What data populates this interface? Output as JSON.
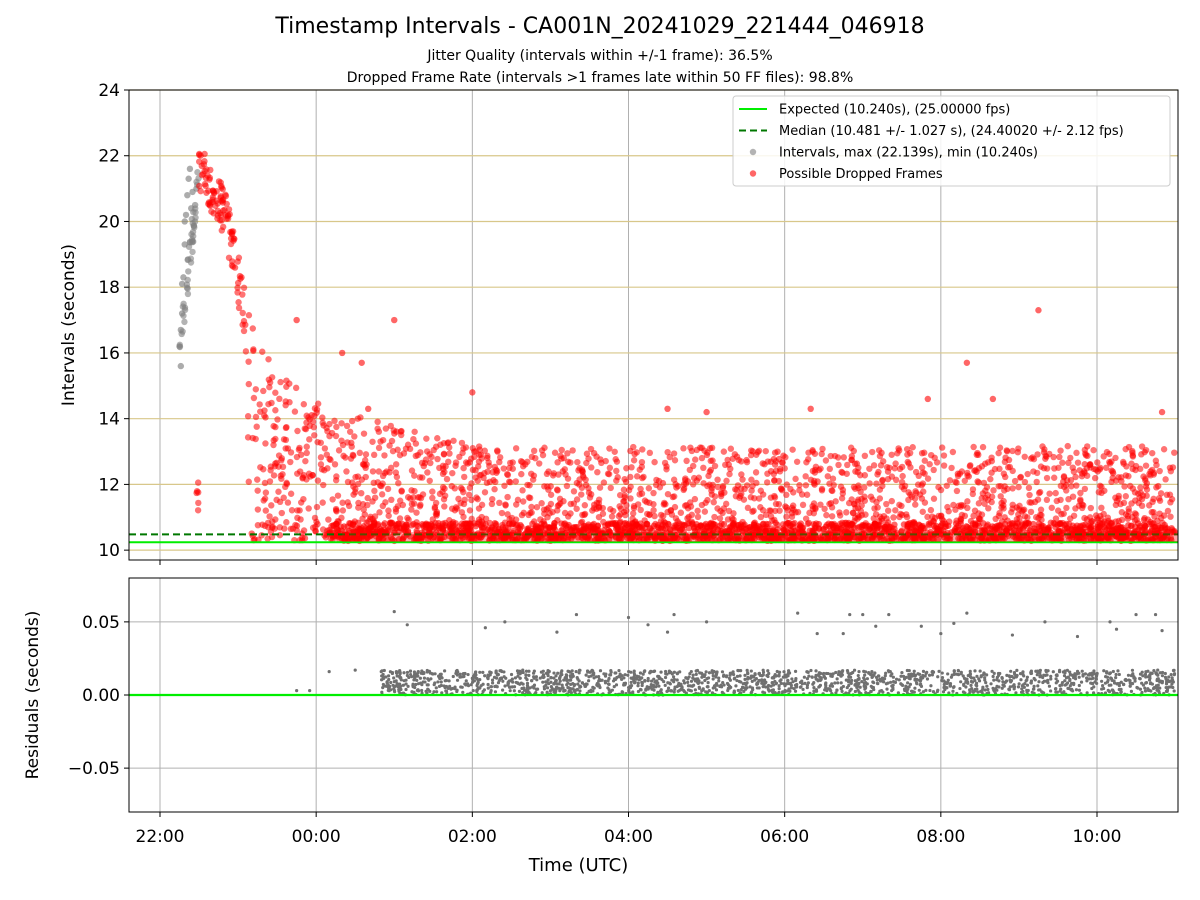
{
  "figure": {
    "title": "Timestamp Intervals - CA001N_20241029_221444_046918",
    "subtitle_1": "Jitter Quality (intervals within +/-1 frame): 36.5%",
    "subtitle_2": "Dropped Frame Rate (intervals >1 frames late within 50 FF files): 98.8%"
  },
  "chart_data": [
    {
      "type": "scatter",
      "panel": "intervals",
      "ylabel": "Intervals (seconds)",
      "xlabel": "",
      "ylim": [
        9.7,
        24
      ],
      "xlim": [
        "21:36",
        "11:00"
      ],
      "yticks": [
        "10",
        "12",
        "14",
        "16",
        "18",
        "20",
        "22",
        "24"
      ],
      "grid": "vertical at hour ticks (grey), horizontal at y ticks (tan)",
      "legend_position": "top-right",
      "colors": {
        "expected": "#00ee00",
        "median": "#007700",
        "intervals": "#808080",
        "dropped": "#ff0000",
        "hgrid": "#d8c78a"
      },
      "reference_lines": [
        {
          "name": "Expected (10.240s), (25.00000 fps)",
          "y": 10.24,
          "style": "solid"
        },
        {
          "name": "Median (10.481 +/- 1.027 s), (24.40020 +/- 2.12 fps)",
          "y": 10.481,
          "style": "dashed"
        }
      ],
      "series": [
        {
          "name": "Intervals, max (22.139s), min (10.240s)",
          "marker": "grey",
          "points": [
            [
              "22:15",
              16.2
            ],
            [
              "22:16",
              16.7
            ],
            [
              "22:17",
              17.2
            ],
            [
              "22:18",
              18.3
            ],
            [
              "22:19",
              19.3
            ],
            [
              "22:20",
              20.2
            ],
            [
              "22:21",
              20.8
            ],
            [
              "22:22",
              21.3
            ],
            [
              "22:23",
              21.6
            ],
            [
              "22:24",
              20.4
            ],
            [
              "22:25",
              20.9
            ],
            [
              "22:27",
              20.5
            ],
            [
              "22:28",
              21.0
            ],
            [
              "22:16",
              15.6
            ],
            [
              "22:17",
              18.1
            ],
            [
              "22:19",
              20.0
            ]
          ]
        },
        {
          "name": "Possible Dropped Frames",
          "marker": "red",
          "trend": [
            [
              "22:30",
              21.8
            ],
            [
              "22:40",
              21.0
            ],
            [
              "22:50",
              20.3
            ],
            [
              "23:00",
              18.3
            ],
            [
              "23:10",
              16.0
            ],
            [
              "23:20",
              14.8
            ],
            [
              "23:40",
              13.8
            ],
            [
              "00:00",
              13.2
            ],
            [
              "00:30",
              12.7
            ],
            [
              "01:00",
              12.4
            ],
            [
              "02:00",
              11.8
            ],
            [
              "06:00",
              11.7
            ],
            [
              "11:00",
              11.8
            ]
          ],
          "outliers": [
            [
              "00:20",
              16.0
            ],
            [
              "00:35",
              15.7
            ],
            [
              "01:00",
              17.0
            ],
            [
              "02:00",
              14.8
            ],
            [
              "04:30",
              14.3
            ],
            [
              "06:20",
              14.3
            ],
            [
              "07:50",
              14.6
            ],
            [
              "08:20",
              15.7
            ],
            [
              "08:40",
              14.6
            ],
            [
              "09:15",
              17.3
            ],
            [
              "10:50",
              14.2
            ],
            [
              "23:45",
              17.0
            ],
            [
              "00:40",
              14.3
            ],
            [
              "05:00",
              14.2
            ]
          ]
        }
      ]
    },
    {
      "type": "scatter",
      "panel": "residuals",
      "ylabel": "Residuals (seconds)",
      "xlabel": "Time (UTC)",
      "ylim": [
        -0.08,
        0.08
      ],
      "yticks": [
        "−0.05",
        "0.00",
        "0.05"
      ],
      "xticks": [
        "22:00",
        "00:00",
        "02:00",
        "04:00",
        "06:00",
        "08:00",
        "10:00"
      ],
      "zero_line": 0.0,
      "series": [
        {
          "name": "Residuals",
          "marker": "grey",
          "points": [
            [
              "23:45",
              0.003
            ],
            [
              "23:55",
              0.003
            ],
            [
              "00:10",
              0.016
            ],
            [
              "00:30",
              0.017
            ],
            [
              "00:50",
              0.016
            ],
            [
              "01:00",
              0.057
            ],
            [
              "01:10",
              0.048
            ],
            [
              "02:10",
              0.046
            ],
            [
              "02:25",
              0.05
            ],
            [
              "03:05",
              0.043
            ],
            [
              "03:20",
              0.055
            ],
            [
              "04:00",
              0.053
            ],
            [
              "04:15",
              0.048
            ],
            [
              "04:30",
              0.043
            ],
            [
              "04:35",
              0.055
            ],
            [
              "05:00",
              0.05
            ],
            [
              "06:10",
              0.056
            ],
            [
              "06:25",
              0.042
            ],
            [
              "06:45",
              0.042
            ],
            [
              "06:50",
              0.055
            ],
            [
              "07:00",
              0.055
            ],
            [
              "07:10",
              0.047
            ],
            [
              "07:20",
              0.055
            ],
            [
              "07:45",
              0.047
            ],
            [
              "08:00",
              0.042
            ],
            [
              "08:10",
              0.049
            ],
            [
              "08:20",
              0.056
            ],
            [
              "08:55",
              0.041
            ],
            [
              "09:20",
              0.05
            ],
            [
              "09:45",
              0.04
            ],
            [
              "10:10",
              0.05
            ],
            [
              "10:15",
              0.045
            ],
            [
              "10:30",
              0.055
            ],
            [
              "10:45",
              0.055
            ],
            [
              "10:50",
              0.044
            ]
          ]
        }
      ]
    }
  ]
}
